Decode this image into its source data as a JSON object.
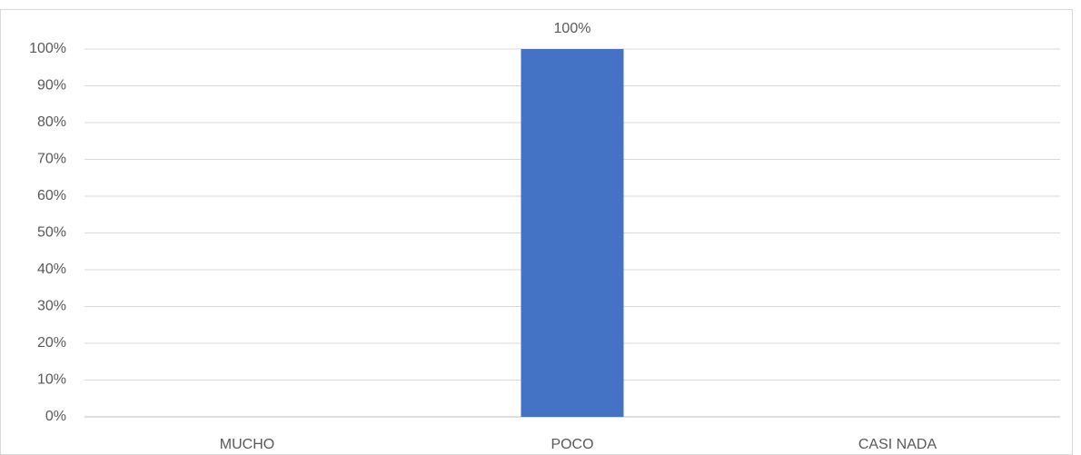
{
  "chart_data": {
    "type": "bar",
    "categories": [
      "MUCHO",
      "POCO",
      "CASI NADA"
    ],
    "values": [
      0,
      100,
      0
    ],
    "value_labels": [
      null,
      "100%",
      null
    ],
    "color": "#4472c4",
    "ylim": [
      0,
      100
    ],
    "yticks": [
      {
        "value": 0,
        "label": "0%"
      },
      {
        "value": 10,
        "label": "10%"
      },
      {
        "value": 20,
        "label": "20%"
      },
      {
        "value": 30,
        "label": "30%"
      },
      {
        "value": 40,
        "label": "40%"
      },
      {
        "value": 50,
        "label": "50%"
      },
      {
        "value": 60,
        "label": "60%"
      },
      {
        "value": 70,
        "label": "70%"
      },
      {
        "value": 80,
        "label": "80%"
      },
      {
        "value": 90,
        "label": "90%"
      },
      {
        "value": 100,
        "label": "100%"
      }
    ],
    "grid": true
  }
}
